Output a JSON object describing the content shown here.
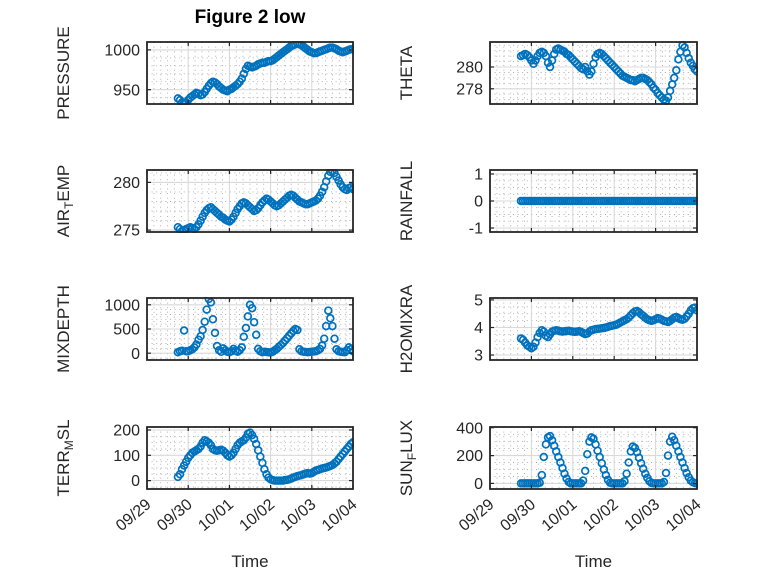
{
  "figure": {
    "title": "Figure 2 low",
    "xlabel": "Time",
    "colors": {
      "marker": "#0072BD",
      "axis": "#262626",
      "grid_major": "#d9d9d9",
      "grid_minor": "#ababab",
      "text": "#262626",
      "title": "#000000",
      "background": "#ffffff"
    }
  },
  "chart_data": {
    "type": "scatter",
    "marker": "open-circle",
    "marker_color": "#0072BD",
    "grid": "on",
    "minor_grid": "dotted",
    "x_axis": {
      "label": "Time",
      "tick_labels": [
        "09/29",
        "09/30",
        "10/01",
        "10/02",
        "10/03",
        "10/04"
      ],
      "tick_values_days": [
        0,
        1,
        2,
        3,
        4,
        5
      ],
      "xlim_days": [
        0,
        5
      ],
      "minor_divisions_per_day": 6
    },
    "shared_x_days": [
      0.75,
      0.8,
      0.85,
      0.9,
      0.95,
      1.0,
      1.05,
      1.1,
      1.15,
      1.2,
      1.25,
      1.3,
      1.35,
      1.4,
      1.45,
      1.5,
      1.55,
      1.6,
      1.65,
      1.7,
      1.75,
      1.8,
      1.85,
      1.9,
      1.95,
      2.0,
      2.05,
      2.1,
      2.15,
      2.2,
      2.25,
      2.3,
      2.35,
      2.4,
      2.45,
      2.5,
      2.55,
      2.6,
      2.65,
      2.7,
      2.75,
      2.8,
      2.85,
      2.9,
      2.95,
      3.0,
      3.05,
      3.1,
      3.15,
      3.2,
      3.25,
      3.3,
      3.35,
      3.4,
      3.45,
      3.5,
      3.55,
      3.6,
      3.65,
      3.7,
      3.75,
      3.8,
      3.85,
      3.9,
      3.95,
      4.0,
      4.05,
      4.1,
      4.15,
      4.2,
      4.25,
      4.3,
      4.35,
      4.4,
      4.45,
      4.5,
      4.55,
      4.6,
      4.65,
      4.7,
      4.75,
      4.8,
      4.85,
      4.9,
      4.95,
      5.0
    ],
    "subplots": [
      {
        "name": "PRESSURE",
        "label": "PRESSURE",
        "label_parts": [
          {
            "text": "PRESSURE"
          }
        ],
        "yticks": [
          950,
          1000
        ],
        "ytick_labels": [
          "950",
          "1000"
        ],
        "ylim": [
          932,
          1010
        ],
        "minor_y": 10,
        "y": [
          939,
          937,
          934,
          933,
          934,
          937,
          940,
          942,
          944,
          946,
          945,
          943,
          944,
          947,
          951,
          955,
          958,
          960,
          959,
          957,
          954,
          952,
          950,
          949,
          948,
          950,
          951,
          953,
          955,
          957,
          960,
          964,
          970,
          976,
          980,
          979,
          978,
          979,
          980,
          982,
          983,
          984,
          984,
          985,
          986,
          986,
          987,
          989,
          991,
          993,
          995,
          997,
          999,
          1001,
          1003,
          1005,
          1006,
          1007,
          1008,
          1007,
          1006,
          1004,
          1002,
          1000,
          998,
          997,
          996,
          996,
          997,
          998,
          999,
          1000,
          1001,
          1002,
          1003,
          1003,
          1002,
          1001,
          999,
          998,
          997,
          998,
          999,
          1000,
          1001,
          1001
        ]
      },
      {
        "name": "THETA",
        "label": "THETA",
        "label_parts": [
          {
            "text": "THETA"
          }
        ],
        "yticks": [
          278,
          280
        ],
        "ytick_labels": [
          "278",
          "280"
        ],
        "ylim": [
          276.6,
          282.3
        ],
        "minor_y": 0.5,
        "y": [
          281.0,
          281.1,
          281.2,
          281.1,
          280.9,
          280.6,
          280.3,
          280.6,
          281.0,
          281.3,
          281.4,
          281.3,
          281.0,
          280.4,
          280.0,
          280.6,
          281.2,
          281.6,
          281.7,
          281.6,
          281.5,
          281.4,
          281.2,
          281.1,
          280.9,
          280.7,
          280.5,
          280.3,
          280.1,
          279.9,
          279.8,
          280.0,
          279.6,
          279.3,
          279.6,
          280.3,
          280.9,
          281.2,
          281.3,
          281.2,
          281.0,
          280.8,
          280.6,
          280.4,
          280.2,
          280.0,
          279.8,
          279.6,
          279.4,
          279.2,
          279.1,
          279.0,
          278.9,
          278.8,
          278.8,
          278.7,
          278.8,
          278.9,
          279.0,
          279.0,
          278.9,
          278.8,
          278.6,
          278.4,
          278.1,
          277.9,
          277.6,
          277.4,
          277.2,
          277.0,
          276.9,
          277.2,
          277.8,
          278.4,
          279.0,
          279.7,
          280.7,
          281.4,
          282.0,
          281.8,
          281.3,
          280.8,
          280.4,
          280.1,
          279.8,
          279.6
        ]
      },
      {
        "name": "AIR_TEMP",
        "label": "AIR_TEMP",
        "label_parts": [
          {
            "text": "AIR"
          },
          {
            "text": "T",
            "sub": true
          },
          {
            "text": "EMP"
          }
        ],
        "yticks": [
          275,
          280
        ],
        "ytick_labels": [
          "275",
          "280"
        ],
        "ylim": [
          274.8,
          281.3
        ],
        "minor_y": 1,
        "y": [
          275.3,
          275.1,
          274.9,
          275.0,
          275.1,
          275.2,
          275.3,
          275.2,
          275.1,
          275.3,
          275.6,
          276.0,
          276.4,
          276.8,
          277.1,
          277.3,
          277.4,
          277.2,
          277.0,
          276.8,
          276.6,
          276.4,
          276.3,
          276.1,
          276.0,
          275.9,
          276.1,
          276.4,
          276.8,
          277.2,
          277.5,
          277.8,
          277.9,
          277.8,
          277.6,
          277.4,
          277.2,
          277.0,
          277.1,
          277.3,
          277.6,
          277.9,
          278.1,
          278.3,
          278.2,
          278.0,
          277.8,
          277.6,
          277.5,
          277.6,
          277.8,
          278.0,
          278.2,
          278.4,
          278.6,
          278.7,
          278.6,
          278.4,
          278.2,
          278.0,
          277.9,
          277.8,
          277.7,
          277.7,
          277.8,
          277.9,
          278.0,
          278.1,
          278.3,
          278.6,
          279.0,
          279.5,
          280.1,
          280.7,
          281.1,
          281.2,
          281.0,
          280.6,
          280.2,
          279.8,
          279.5,
          279.3,
          279.2,
          279.4,
          279.5,
          279.3
        ]
      },
      {
        "name": "RAINFALL",
        "label": "RAINFALL",
        "label_parts": [
          {
            "text": "RAINFALL"
          }
        ],
        "yticks": [
          -1,
          0,
          1
        ],
        "ytick_labels": [
          "-1",
          "0",
          "1"
        ],
        "ylim": [
          -1.15,
          1.15
        ],
        "minor_y": 0.25,
        "y": [
          0,
          0,
          0,
          0,
          0,
          0,
          0,
          0,
          0,
          0,
          0,
          0,
          0,
          0,
          0,
          0,
          0,
          0,
          0,
          0,
          0,
          0,
          0,
          0,
          0,
          0,
          0,
          0,
          0,
          0,
          0,
          0,
          0,
          0,
          0,
          0,
          0,
          0,
          0,
          0,
          0,
          0,
          0,
          0,
          0,
          0,
          0,
          0,
          0,
          0,
          0,
          0,
          0,
          0,
          0,
          0,
          0,
          0,
          0,
          0,
          0,
          0,
          0,
          0,
          0,
          0,
          0,
          0,
          0,
          0,
          0,
          0,
          0,
          0,
          0,
          0,
          0,
          0,
          0,
          0,
          0,
          0,
          0,
          0,
          0,
          0
        ]
      },
      {
        "name": "MIXDEPTH",
        "label": "MIXDEPTH",
        "label_parts": [
          {
            "text": "MIXDEPTH"
          }
        ],
        "yticks": [
          0,
          500,
          1000
        ],
        "ytick_labels": [
          "0",
          "500",
          "1000"
        ],
        "ylim": [
          -140,
          1140
        ],
        "minor_y": 100,
        "y": [
          20,
          40,
          50,
          470,
          40,
          40,
          60,
          80,
          120,
          180,
          280,
          350,
          480,
          650,
          900,
          1120,
          1050,
          700,
          420,
          150,
          60,
          30,
          100,
          60,
          30,
          20,
          40,
          90,
          50,
          30,
          60,
          120,
          340,
          520,
          760,
          1000,
          930,
          640,
          380,
          90,
          40,
          20,
          30,
          25,
          20,
          15,
          30,
          60,
          90,
          130,
          170,
          210,
          260,
          310,
          360,
          410,
          460,
          500,
          480,
          80,
          40,
          30,
          25,
          20,
          25,
          30,
          35,
          40,
          60,
          90,
          160,
          300,
          560,
          880,
          720,
          560,
          300,
          80,
          40,
          30,
          25,
          20,
          60,
          120,
          80,
          40
        ]
      },
      {
        "name": "H2OMIXRA",
        "label": "H2OMIXRA",
        "label_parts": [
          {
            "text": "H2OMIXRA"
          }
        ],
        "yticks": [
          3,
          4,
          5
        ],
        "ytick_labels": [
          "3",
          "4",
          "5"
        ],
        "ylim": [
          2.82,
          5.07
        ],
        "minor_y": 0.25,
        "y": [
          3.6,
          3.55,
          3.45,
          3.35,
          3.3,
          3.25,
          3.3,
          3.45,
          3.65,
          3.8,
          3.9,
          3.85,
          3.7,
          3.65,
          3.75,
          3.85,
          3.88,
          3.9,
          3.88,
          3.86,
          3.85,
          3.86,
          3.87,
          3.88,
          3.86,
          3.85,
          3.84,
          3.85,
          3.86,
          3.84,
          3.8,
          3.76,
          3.78,
          3.85,
          3.9,
          3.92,
          3.94,
          3.95,
          3.96,
          3.97,
          3.98,
          4.0,
          4.02,
          4.05,
          4.06,
          4.08,
          4.1,
          4.14,
          4.18,
          4.22,
          4.26,
          4.3,
          4.36,
          4.44,
          4.52,
          4.58,
          4.6,
          4.55,
          4.48,
          4.42,
          4.35,
          4.3,
          4.26,
          4.24,
          4.26,
          4.3,
          4.34,
          4.32,
          4.28,
          4.24,
          4.22,
          4.2,
          4.24,
          4.3,
          4.36,
          4.38,
          4.34,
          4.3,
          4.28,
          4.32,
          4.4,
          4.5,
          4.62,
          4.7,
          4.72,
          4.62
        ]
      },
      {
        "name": "TERR_MSL",
        "label": "TERR_MSL",
        "label_parts": [
          {
            "text": "TERR"
          },
          {
            "text": "M",
            "sub": true
          },
          {
            "text": "SL"
          }
        ],
        "yticks": [
          0,
          100,
          200
        ],
        "ytick_labels": [
          "0",
          "100",
          "200"
        ],
        "ylim": [
          -33,
          212
        ],
        "minor_y": 25,
        "y": [
          15,
          25,
          45,
          60,
          75,
          90,
          100,
          110,
          115,
          120,
          125,
          135,
          150,
          160,
          155,
          150,
          140,
          125,
          120,
          118,
          120,
          122,
          118,
          110,
          100,
          95,
          100,
          110,
          125,
          140,
          150,
          155,
          160,
          170,
          185,
          190,
          180,
          165,
          145,
          120,
          95,
          70,
          45,
          25,
          12,
          5,
          2,
          0,
          0,
          0,
          0,
          0,
          2,
          3,
          5,
          8,
          12,
          15,
          18,
          20,
          22,
          25,
          28,
          30,
          28,
          30,
          35,
          40,
          42,
          45,
          48,
          50,
          52,
          55,
          58,
          62,
          68,
          75,
          85,
          95,
          105,
          115,
          125,
          135,
          145,
          152
        ]
      },
      {
        "name": "SUN_FLUX",
        "label": "SUN_FLUX",
        "label_parts": [
          {
            "text": "SUN"
          },
          {
            "text": "F",
            "sub": true
          },
          {
            "text": "LUX"
          }
        ],
        "yticks": [
          0,
          200,
          400
        ],
        "ytick_labels": [
          "0",
          "200",
          "400"
        ],
        "ylim": [
          -40,
          405
        ],
        "minor_y": 50,
        "y": [
          0,
          0,
          0,
          0,
          0,
          0,
          0,
          0,
          0,
          5,
          60,
          190,
          280,
          330,
          340,
          310,
          270,
          230,
          190,
          150,
          110,
          70,
          35,
          10,
          0,
          0,
          0,
          0,
          0,
          0,
          20,
          90,
          210,
          300,
          330,
          320,
          280,
          235,
          190,
          145,
          100,
          60,
          25,
          5,
          0,
          0,
          0,
          0,
          0,
          0,
          15,
          70,
          150,
          230,
          265,
          255,
          225,
          185,
          145,
          105,
          70,
          40,
          15,
          3,
          0,
          0,
          0,
          0,
          0,
          10,
          75,
          200,
          300,
          335,
          310,
          270,
          230,
          190,
          150,
          110,
          75,
          45,
          20,
          8,
          2,
          0
        ]
      }
    ]
  }
}
